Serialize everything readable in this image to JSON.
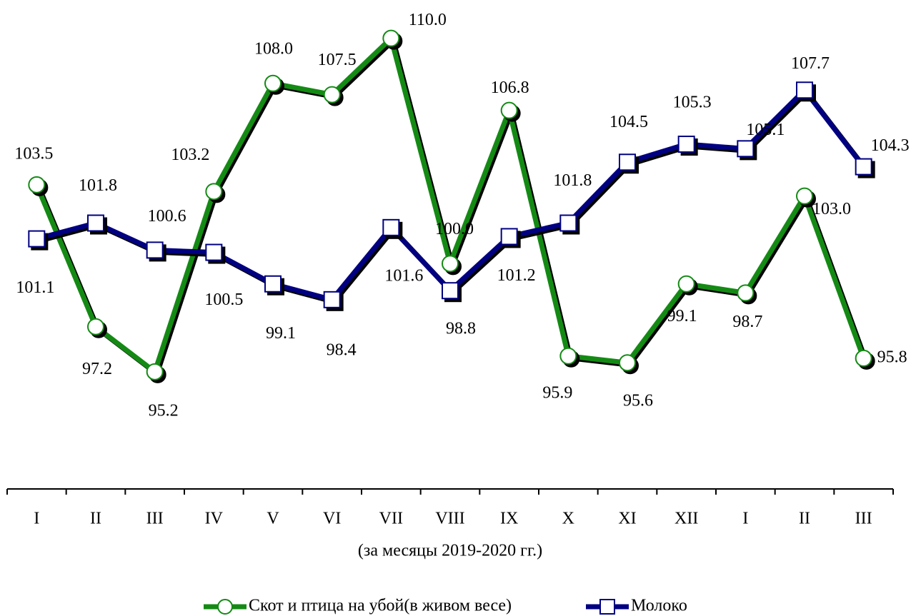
{
  "chart_data": {
    "type": "line",
    "xlabel": "(за месяцы 2019-2020 гг.)",
    "categories": [
      "I",
      "II",
      "III",
      "IV",
      "V",
      "VI",
      "VII",
      "VIII",
      "IX",
      "X",
      "XI",
      "XII",
      "I",
      "II",
      "III"
    ],
    "ylim": [
      90,
      111.7
    ],
    "series": [
      {
        "name": "Скот и птица на убой(в живом весе)",
        "color": "#148a14",
        "marker": "circle",
        "values": [
          103.5,
          97.2,
          95.2,
          103.2,
          108.0,
          107.5,
          110.0,
          100.0,
          106.8,
          95.9,
          95.6,
          99.1,
          98.7,
          103.0,
          95.8
        ],
        "value_labels": [
          "103.5",
          "97.2",
          "95.2",
          "103.2",
          "108.0",
          "107.5",
          "110.0",
          "100.0",
          "106.8",
          "95.9",
          "95.6",
          "99.1",
          "98.7",
          "103.0",
          "95.8"
        ]
      },
      {
        "name": "Молоко",
        "color": "#000080",
        "marker": "square",
        "values": [
          101.1,
          101.8,
          100.6,
          100.5,
          99.1,
          98.4,
          101.6,
          98.8,
          101.2,
          101.8,
          104.5,
          105.3,
          105.1,
          107.7,
          104.3
        ],
        "value_labels": [
          "101.1",
          "101.8",
          "100.6",
          "100.5",
          "99.1",
          "98.4",
          "101.6",
          "98.8",
          "101.2",
          "101.8",
          "104.5",
          "105.3",
          "105.1",
          "107.7",
          "104.3"
        ]
      }
    ]
  }
}
